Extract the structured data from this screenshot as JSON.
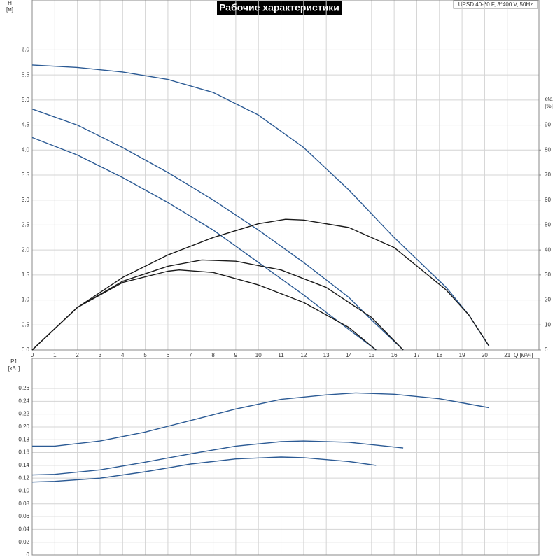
{
  "chart_data": [
    {
      "type": "line",
      "title": "Рабочие характеристики",
      "subtitle": "UPSD 40-60 F, 3*400 V, 50Hz",
      "y_label": "H",
      "y_unit": "[м]",
      "y2_label": "eta",
      "y2_unit": "[%]",
      "x_label": "Q [м³/ч]",
      "xlim": [
        0,
        22.4
      ],
      "xticks": [
        0,
        1,
        2,
        3,
        4,
        5,
        6,
        7,
        8,
        9,
        10,
        11,
        12,
        13,
        14,
        15,
        16,
        17,
        18,
        19,
        20,
        21
      ],
      "ylim": [
        0,
        7
      ],
      "yticks": [
        {
          "value": 0,
          "label": "0.0"
        },
        0.5,
        {
          "value": 1,
          "label": "1.0"
        },
        1.5,
        {
          "value": 2,
          "label": "2.0"
        },
        2.5,
        {
          "value": 3,
          "label": "3.0"
        },
        3.5,
        {
          "value": 4,
          "label": "4.0"
        },
        4.5,
        {
          "value": 5,
          "label": "5.0"
        },
        5.5,
        {
          "value": 6,
          "label": "6.0"
        }
      ],
      "y2lim": [
        0,
        140
      ],
      "y2ticks": [
        0,
        10,
        20,
        30,
        40,
        50,
        60,
        70,
        80,
        90
      ],
      "grid": true,
      "series": [
        {
          "color": "#2b5a94",
          "x": [
            0,
            2,
            4,
            6,
            8,
            10,
            12,
            14,
            16,
            18.3,
            19.3,
            20.2
          ],
          "values": [
            5.7,
            5.65,
            5.56,
            5.41,
            5.15,
            4.7,
            4.05,
            3.2,
            2.25,
            1.25,
            0.7,
            0.07
          ]
        },
        {
          "color": "#2b5a94",
          "x": [
            0,
            2,
            4,
            6,
            8,
            10,
            12,
            14,
            15,
            16.4
          ],
          "values": [
            4.82,
            4.5,
            4.05,
            3.55,
            3.0,
            2.4,
            1.75,
            1.05,
            0.6,
            0
          ]
        },
        {
          "color": "#2b5a94",
          "x": [
            0,
            2,
            4,
            6,
            8,
            10,
            12,
            13,
            15.2
          ],
          "values": [
            4.25,
            3.9,
            3.45,
            2.95,
            2.4,
            1.75,
            1.1,
            0.75,
            0
          ]
        },
        {
          "color": "#1a1a1a",
          "axis": "y2",
          "x": [
            0,
            2,
            4,
            6,
            8,
            10,
            11.2,
            12,
            14,
            16,
            18.3,
            19.3,
            20.2
          ],
          "values": [
            0,
            17,
            29,
            38,
            45,
            50.5,
            52.3,
            52,
            49,
            41,
            24,
            14,
            1.5
          ]
        },
        {
          "color": "#1a1a1a",
          "axis": "y2",
          "x": [
            0,
            2,
            4,
            6,
            7.5,
            9,
            11,
            13,
            15,
            16.4
          ],
          "values": [
            0,
            17,
            27.5,
            33.5,
            36,
            35.5,
            32,
            25,
            13,
            0
          ]
        },
        {
          "color": "#1a1a1a",
          "axis": "y2",
          "x": [
            0,
            2,
            4,
            6,
            6.5,
            8,
            10,
            12,
            14,
            15.2
          ],
          "values": [
            0,
            17,
            27,
            31.5,
            32,
            31,
            26,
            19,
            9,
            0
          ]
        }
      ]
    },
    {
      "type": "line",
      "y_label": "P1",
      "y_unit": "[кВт]",
      "xlim": [
        0,
        22.4
      ],
      "ylim": [
        0,
        0.307
      ],
      "yticks": [
        0,
        0.02,
        0.04,
        0.06,
        0.08,
        {
          "value": 0.1,
          "label": "0.10"
        },
        0.12,
        0.14,
        0.16,
        0.18,
        {
          "value": 0.2,
          "label": "0.20"
        },
        0.22,
        0.24,
        0.26
      ],
      "grid": true,
      "series": [
        {
          "color": "#2b5a94",
          "x": [
            0,
            1,
            3,
            5,
            7,
            9,
            11,
            13,
            14.3,
            16,
            18,
            20.2
          ],
          "values": [
            0.17,
            0.17,
            0.178,
            0.192,
            0.21,
            0.228,
            0.243,
            0.25,
            0.253,
            0.251,
            0.244,
            0.23
          ]
        },
        {
          "color": "#2b5a94",
          "x": [
            0,
            1,
            3,
            5,
            7,
            9,
            11,
            12,
            14,
            16.4
          ],
          "values": [
            0.125,
            0.126,
            0.133,
            0.145,
            0.158,
            0.17,
            0.177,
            0.178,
            0.176,
            0.167
          ]
        },
        {
          "color": "#2b5a94",
          "x": [
            0,
            1,
            3,
            5,
            7,
            9,
            11,
            12,
            14,
            15.2
          ],
          "values": [
            0.114,
            0.115,
            0.12,
            0.13,
            0.142,
            0.15,
            0.153,
            0.152,
            0.146,
            0.14
          ]
        }
      ]
    }
  ]
}
